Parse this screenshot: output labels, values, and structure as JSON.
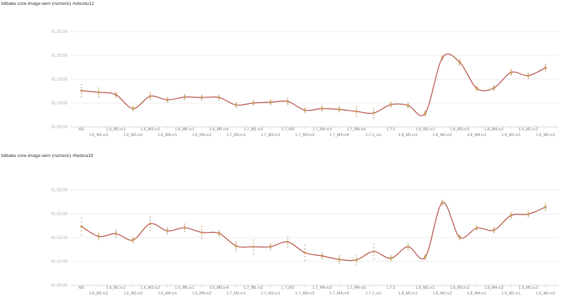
{
  "page": {
    "background": "#ffffff"
  },
  "colors": {
    "line": "#b2493e",
    "marker_fill": "#d0a05c",
    "marker_stroke": "#b2743a",
    "scatter_a": "#c3b6a0",
    "scatter_b": "#d9b98a",
    "grid": "#ececec",
    "axis": "#d6d6d6",
    "tick": "#cfcfcf",
    "y_label": "#aaaaaa",
    "x_label": "#757575",
    "title": "#333333"
  },
  "chart_data": [
    {
      "type": "line",
      "title": "bitbake core-image-oem (numeric) #ubuntu12",
      "grid": true,
      "legend_position": "none",
      "ylim": [
        "01:05:00",
        "01:25:00"
      ],
      "y_ticks": [
        "01:25:00",
        "01:20:00",
        "01:15:00",
        "01:10:00",
        "01:05:00"
      ],
      "categories": [
        "M1",
        "1.6_M1.rc1",
        "1.6_M2.rc1",
        "1.6_M2.rc2",
        "1.6_M3.rc2",
        "1.6_M4.rc1",
        "1.6_M5.rc1",
        "1.6_M5.rc2",
        "1.6_M5.rc4",
        "1.7_M1.rc1",
        "1.7_M1.rc2",
        "1.7_M2.rc1",
        "1.7_M3",
        "1.7_M3.rc2",
        "1.7_M4.rc3",
        "1.7_M4.rc4",
        "1.7_M4.rc5",
        "1.7.1_rc1",
        "1.7.2",
        "1.8_M1.rc1",
        "1.8_M2.rc1",
        "1.8_M2.rc2",
        "1.8_M3.rc3",
        "1.8_M4.rc1",
        "1.8_M4.rc2",
        "1.9_M1.rc1",
        "1.9_M1.rc2",
        "1.9_M2.rc1"
      ],
      "values": [
        "01:12:35",
        "01:12:15",
        "01:11:45",
        "01:08:50",
        "01:11:25",
        "01:10:40",
        "01:11:15",
        "01:11:10",
        "01:11:10",
        "01:09:35",
        "01:10:00",
        "01:10:10",
        "01:10:20",
        "01:08:30",
        "01:08:50",
        "01:08:40",
        "01:08:15",
        "01:07:55",
        "01:09:40",
        "01:09:30",
        "01:07:50",
        "01:19:30",
        "01:18:35",
        "01:13:05",
        "01:13:10",
        "01:16:25",
        "01:15:45",
        "01:17:25"
      ],
      "scatter_spread_sec": [
        150,
        110,
        60,
        50,
        90,
        60,
        60,
        60,
        60,
        60,
        60,
        60,
        80,
        60,
        60,
        60,
        120,
        130,
        60,
        60,
        60,
        60,
        70,
        60,
        60,
        70,
        60,
        80
      ]
    },
    {
      "type": "line",
      "title": "bitbake core-image-oem (numeric) #fedora19",
      "grid": true,
      "legend_position": "none",
      "ylim": [
        "01:05:00",
        "01:25:00"
      ],
      "y_ticks": [
        "01:25:00",
        "01:20:00",
        "01:15:00",
        "01:10:00",
        "01:05:00"
      ],
      "categories": [
        "M1",
        "1.6_M1.rc1",
        "1.6_M2.rc1",
        "1.6_M2.rc2",
        "1.6_M3.rc2",
        "1.6_M4.rc1",
        "1.6_M5.rc1",
        "1.6_M5.rc2",
        "1.6_M5.rc4",
        "1.7_M1.rc1",
        "1.7_M1.rc2",
        "1.7_M2.rc1",
        "1.7_M3",
        "1.7_M3.rc2",
        "1.7_M4.rc3",
        "1.7_M4.rc4",
        "1.7_M4.rc5",
        "1.7.1_rc1",
        "1.7.2",
        "1.8_M1.rc1",
        "1.8_M2.rc1",
        "1.8_M2.rc2",
        "1.8_M3.rc3",
        "1.8_M4.rc1",
        "1.8_M4.rc2",
        "1.9_M1.rc1",
        "1.9_M1.rc2",
        "1.9_M2.rc1"
      ],
      "values": [
        "01:17:20",
        "01:15:15",
        "01:15:50",
        "01:14:30",
        "01:17:55",
        "01:16:25",
        "01:17:05",
        "01:16:05",
        "01:15:55",
        "01:13:15",
        "01:13:05",
        "01:13:05",
        "01:14:05",
        "01:11:50",
        "01:11:10",
        "01:10:25",
        "01:10:20",
        "01:12:05",
        "01:10:40",
        "01:13:05",
        "01:10:55",
        "01:22:20",
        "01:15:05",
        "01:17:00",
        "01:16:35",
        "01:19:40",
        "01:19:55",
        "01:21:25"
      ],
      "scatter_spread_sec": [
        220,
        80,
        90,
        70,
        170,
        80,
        90,
        150,
        70,
        110,
        170,
        70,
        130,
        190,
        70,
        90,
        130,
        190,
        70,
        90,
        60,
        60,
        60,
        50,
        60,
        70,
        60,
        90
      ]
    }
  ]
}
